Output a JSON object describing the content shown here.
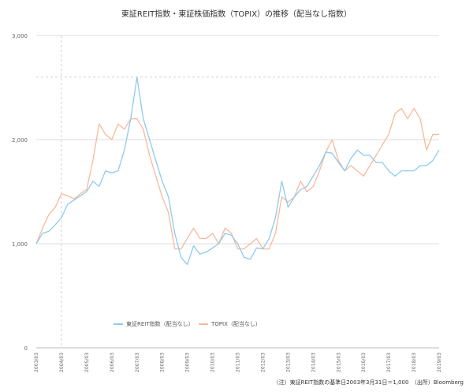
{
  "chart_data": {
    "type": "line",
    "title": "東証REIT指数・東証株価指数（TOPIX）の推移（配当なし指数）",
    "xlabel": "",
    "ylabel": "",
    "ylim": [
      0,
      3000
    ],
    "yticks": [
      "0",
      "1,000",
      "2,000",
      "3,000"
    ],
    "xticks": [
      "2003/03",
      "2004/03",
      "2005/03",
      "2006/03",
      "2007/03",
      "2008/03",
      "2009/03",
      "2010/03",
      "2011/03",
      "2012/03",
      "2013/03",
      "2014/03",
      "2015/03",
      "2016/03",
      "2017/03",
      "2018/03",
      "2019/03"
    ],
    "grid": true,
    "legend_position": "bottom",
    "x": [
      2003.25,
      2003.5,
      2003.75,
      2004.0,
      2004.25,
      2004.5,
      2004.75,
      2005.0,
      2005.25,
      2005.5,
      2005.75,
      2006.0,
      2006.25,
      2006.5,
      2006.75,
      2007.0,
      2007.25,
      2007.5,
      2007.75,
      2008.0,
      2008.25,
      2008.5,
      2008.75,
      2009.0,
      2009.25,
      2009.5,
      2009.75,
      2010.0,
      2010.25,
      2010.5,
      2010.75,
      2011.0,
      2011.25,
      2011.5,
      2011.75,
      2012.0,
      2012.25,
      2012.5,
      2012.75,
      2013.0,
      2013.25,
      2013.5,
      2013.75,
      2014.0,
      2014.25,
      2014.5,
      2014.75,
      2015.0,
      2015.25,
      2015.5,
      2015.75,
      2016.0,
      2016.25,
      2016.5,
      2016.75,
      2017.0,
      2017.25,
      2017.5,
      2017.75,
      2018.0,
      2018.25,
      2018.5,
      2018.75,
      2019.0,
      2019.25
    ],
    "series": [
      {
        "name": "東証REIT指数（配当なし）",
        "color": "#8ecbec",
        "values": [
          1000,
          1100,
          1120,
          1180,
          1250,
          1380,
          1420,
          1460,
          1500,
          1600,
          1550,
          1700,
          1680,
          1700,
          1900,
          2200,
          2600,
          2200,
          2000,
          1800,
          1600,
          1450,
          1100,
          870,
          800,
          980,
          900,
          920,
          960,
          1000,
          1100,
          1080,
          1000,
          870,
          850,
          960,
          950,
          1050,
          1250,
          1600,
          1350,
          1450,
          1520,
          1550,
          1650,
          1750,
          1880,
          1870,
          1780,
          1700,
          1820,
          1900,
          1850,
          1850,
          1780,
          1780,
          1700,
          1650,
          1700,
          1700,
          1700,
          1750,
          1750,
          1800,
          1900
        ]
      },
      {
        "name": "TOPIX（配当なし）",
        "color": "#f9b89a",
        "values": [
          1000,
          1150,
          1280,
          1350,
          1480,
          1460,
          1430,
          1480,
          1520,
          1800,
          2150,
          2050,
          2000,
          2150,
          2100,
          2200,
          2200,
          2100,
          1850,
          1650,
          1450,
          1300,
          950,
          950,
          1050,
          1150,
          1050,
          1050,
          1100,
          1000,
          1150,
          1100,
          950,
          950,
          1000,
          1050,
          950,
          950,
          1100,
          1450,
          1400,
          1450,
          1600,
          1500,
          1550,
          1700,
          1880,
          2000,
          1800,
          1700,
          1750,
          1700,
          1650,
          1750,
          1850,
          1950,
          2050,
          2250,
          2300,
          2200,
          2300,
          2200,
          1900,
          2050,
          2050
        ]
      }
    ],
    "footnote": "（注）東証REIT指数の基準日2003年3月31日＝1,000　（出所）Bloomberg"
  }
}
